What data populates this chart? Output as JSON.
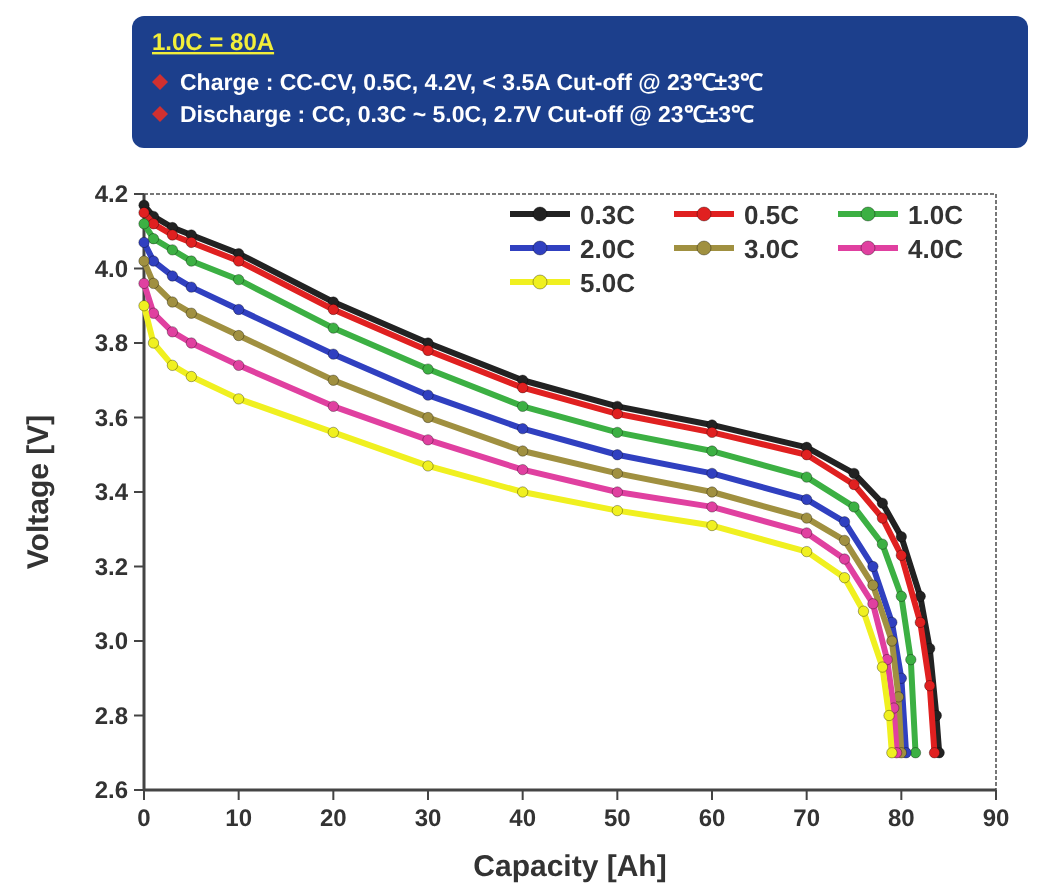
{
  "chart_data": {
    "type": "line",
    "title": "1.0C = 80A",
    "annotations": [
      "Charge : CC-CV, 0.5C,  4.2V,  < 3.5A Cut-off @ 23℃±3℃",
      "Discharge :  CC, 0.3C ~ 5.0C, 2.7V Cut-off @ 23℃±3℃"
    ],
    "xlabel": "Capacity [Ah]",
    "ylabel": "Voltage [V]",
    "xlim": [
      0,
      90
    ],
    "xticks": [
      0,
      10,
      20,
      30,
      40,
      50,
      60,
      70,
      80,
      90
    ],
    "ylim": [
      2.6,
      4.2
    ],
    "yticks": [
      2.6,
      2.8,
      {
        "value": 3,
        "label": "3.0"
      },
      3.2,
      3.4,
      3.6,
      3.8,
      {
        "value": 4,
        "label": "4.0"
      },
      4.2
    ],
    "grid": false,
    "legend": "top right",
    "marker": "circle",
    "line_style": "solid",
    "series": [
      {
        "name": "0.3C",
        "color": "#222222",
        "x": [
          0,
          1,
          3,
          5,
          10,
          20,
          30,
          40,
          50,
          60,
          70,
          75,
          78,
          80,
          82,
          83,
          83.7,
          84
        ],
        "values": [
          4.17,
          4.14,
          4.11,
          4.09,
          4.04,
          3.91,
          3.8,
          3.7,
          3.63,
          3.58,
          3.52,
          3.45,
          3.37,
          3.28,
          3.12,
          2.98,
          2.8,
          2.7
        ]
      },
      {
        "name": "0.5C",
        "color": "#e02020",
        "x": [
          0,
          1,
          3,
          5,
          10,
          20,
          30,
          40,
          50,
          60,
          70,
          75,
          78,
          80,
          82,
          83,
          83.5
        ],
        "values": [
          4.15,
          4.12,
          4.09,
          4.07,
          4.02,
          3.89,
          3.78,
          3.68,
          3.61,
          3.56,
          3.5,
          3.42,
          3.33,
          3.23,
          3.05,
          2.88,
          2.7
        ]
      },
      {
        "name": "1.0C",
        "color": "#3cb043",
        "x": [
          0,
          1,
          3,
          5,
          10,
          20,
          30,
          40,
          50,
          60,
          70,
          75,
          78,
          80,
          81,
          81.5
        ],
        "values": [
          4.12,
          4.08,
          4.05,
          4.02,
          3.97,
          3.84,
          3.73,
          3.63,
          3.56,
          3.51,
          3.44,
          3.36,
          3.26,
          3.12,
          2.95,
          2.7
        ]
      },
      {
        "name": "2.0C",
        "color": "#3040c0",
        "x": [
          0,
          1,
          3,
          5,
          10,
          20,
          30,
          40,
          50,
          60,
          70,
          74,
          77,
          79,
          80,
          80.5
        ],
        "values": [
          4.07,
          4.02,
          3.98,
          3.95,
          3.89,
          3.77,
          3.66,
          3.57,
          3.5,
          3.45,
          3.38,
          3.32,
          3.2,
          3.05,
          2.9,
          2.7
        ]
      },
      {
        "name": "3.0C",
        "color": "#a09040",
        "x": [
          0,
          1,
          3,
          5,
          10,
          20,
          30,
          40,
          50,
          60,
          70,
          74,
          77,
          79,
          79.7,
          80
        ],
        "values": [
          4.02,
          3.96,
          3.91,
          3.88,
          3.82,
          3.7,
          3.6,
          3.51,
          3.45,
          3.4,
          3.33,
          3.27,
          3.15,
          3.0,
          2.85,
          2.7
        ]
      },
      {
        "name": "4.0C",
        "color": "#e040a0",
        "x": [
          0,
          1,
          3,
          5,
          10,
          20,
          30,
          40,
          50,
          60,
          70,
          74,
          77,
          78.5,
          79.2,
          79.5
        ],
        "values": [
          3.96,
          3.88,
          3.83,
          3.8,
          3.74,
          3.63,
          3.54,
          3.46,
          3.4,
          3.36,
          3.29,
          3.22,
          3.1,
          2.95,
          2.82,
          2.7
        ]
      },
      {
        "name": "5.0C",
        "color": "#f0f020",
        "x": [
          0,
          1,
          3,
          5,
          10,
          20,
          30,
          40,
          50,
          60,
          70,
          74,
          76,
          78,
          78.7,
          79
        ],
        "values": [
          3.9,
          3.8,
          3.74,
          3.71,
          3.65,
          3.56,
          3.47,
          3.4,
          3.35,
          3.31,
          3.24,
          3.17,
          3.08,
          2.93,
          2.8,
          2.7
        ]
      }
    ]
  }
}
